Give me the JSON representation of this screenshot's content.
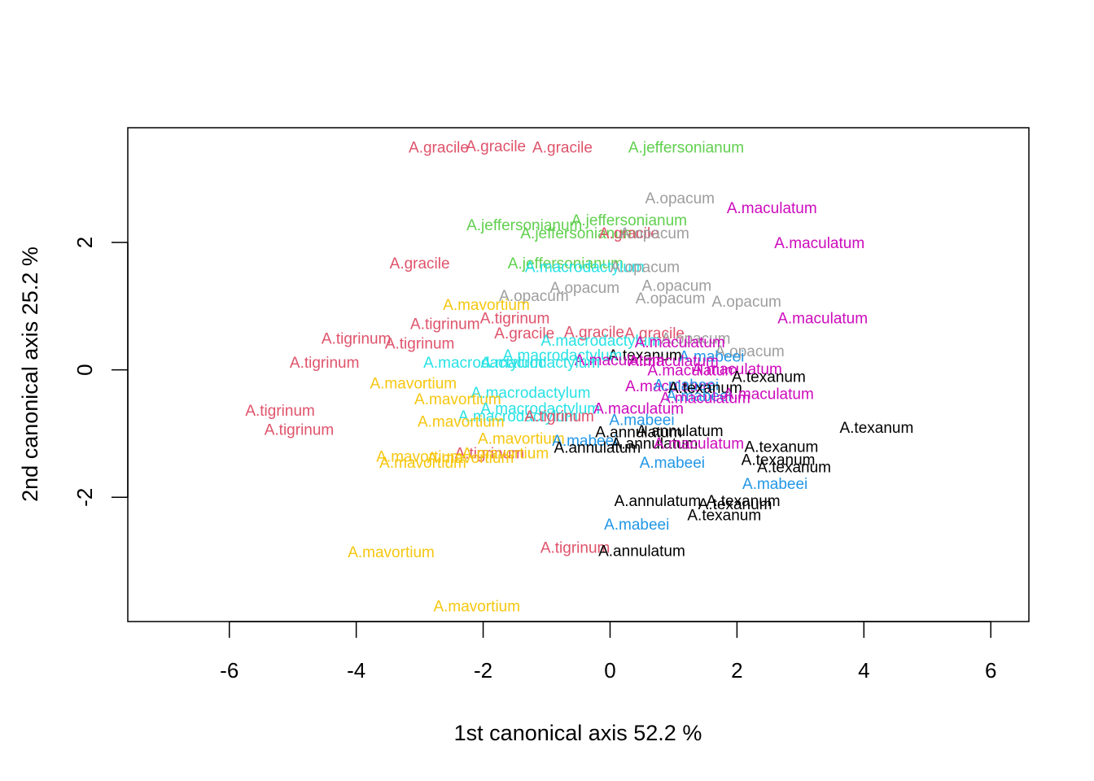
{
  "chart_data": {
    "type": "scatter",
    "title": "",
    "xlabel": "1st canonical axis 52.2 %",
    "ylabel": "2nd canonical axis 25.2 %",
    "xlim": [
      -7.6,
      6.6
    ],
    "ylim": [
      -3.95,
      3.8
    ],
    "x_ticks": [
      -6,
      -4,
      -2,
      0,
      2,
      4,
      6
    ],
    "y_ticks": [
      -2,
      0,
      2
    ],
    "grid": false,
    "colors": {
      "A.gracile": "#DF536B",
      "A.tigrinum": "#DF536B",
      "A.jeffersonianum": "#61D04F",
      "A.opacum": "#9E9E9E",
      "A.maculatum": "#CD0BBC",
      "A.macrodactylum": "#28E2E5",
      "A.mavortium": "#F5C710",
      "A.mabeei": "#2297E6",
      "A.annulatum": "#000000",
      "A.texanum": "#000000"
    },
    "points": [
      {
        "label": "A.gracile",
        "x": -2.7,
        "y": 3.5
      },
      {
        "label": "A.gracile",
        "x": -1.8,
        "y": 3.52
      },
      {
        "label": "A.gracile",
        "x": -0.75,
        "y": 3.5
      },
      {
        "label": "A.jeffersonianum",
        "x": 1.2,
        "y": 3.5
      },
      {
        "label": "A.opacum",
        "x": 1.1,
        "y": 2.7
      },
      {
        "label": "A.maculatum",
        "x": 2.55,
        "y": 2.55
      },
      {
        "label": "A.jeffersonianum",
        "x": -1.35,
        "y": 2.28
      },
      {
        "label": "A.jeffersonianum",
        "x": 0.3,
        "y": 2.36
      },
      {
        "label": "A.jeffersonianum",
        "x": -0.5,
        "y": 2.15
      },
      {
        "label": "A.gracile",
        "x": 0.3,
        "y": 2.15
      },
      {
        "label": "A.opacum",
        "x": 0.7,
        "y": 2.15
      },
      {
        "label": "A.maculatum",
        "x": 3.3,
        "y": 2.0
      },
      {
        "label": "A.gracile",
        "x": -3.0,
        "y": 1.68
      },
      {
        "label": "A.jeffersonianum",
        "x": -0.7,
        "y": 1.68
      },
      {
        "label": "A.macrodactylum",
        "x": -0.4,
        "y": 1.62
      },
      {
        "label": "A.opacum",
        "x": 0.55,
        "y": 1.62
      },
      {
        "label": "A.opacum",
        "x": -0.4,
        "y": 1.3
      },
      {
        "label": "A.opacum",
        "x": 1.05,
        "y": 1.33
      },
      {
        "label": "A.opacum",
        "x": -1.2,
        "y": 1.17
      },
      {
        "label": "A.opacum",
        "x": 0.95,
        "y": 1.13
      },
      {
        "label": "A.opacum",
        "x": 2.15,
        "y": 1.08
      },
      {
        "label": "A.mavortium",
        "x": -1.95,
        "y": 1.03
      },
      {
        "label": "A.tigrinum",
        "x": -1.5,
        "y": 0.82
      },
      {
        "label": "A.tigrinum",
        "x": -2.6,
        "y": 0.73
      },
      {
        "label": "A.maculatum",
        "x": 3.35,
        "y": 0.82
      },
      {
        "label": "A.gracile",
        "x": -1.35,
        "y": 0.58
      },
      {
        "label": "A.gracile",
        "x": -0.25,
        "y": 0.6
      },
      {
        "label": "A.gracile",
        "x": 0.7,
        "y": 0.58
      },
      {
        "label": "A.tigrinum",
        "x": -4.0,
        "y": 0.5
      },
      {
        "label": "A.tigrinum",
        "x": -3.0,
        "y": 0.42
      },
      {
        "label": "A.macrodactylum",
        "x": -0.15,
        "y": 0.47
      },
      {
        "label": "A.opacum",
        "x": 1.35,
        "y": 0.5
      },
      {
        "label": "A.maculatum",
        "x": 1.1,
        "y": 0.44
      },
      {
        "label": "A.opacum",
        "x": 2.2,
        "y": 0.3
      },
      {
        "label": "A.texanum",
        "x": 0.55,
        "y": 0.24
      },
      {
        "label": "A.macrodactylum",
        "x": -0.75,
        "y": 0.24
      },
      {
        "label": "A.mabeei",
        "x": 1.6,
        "y": 0.22
      },
      {
        "label": "A.maculatum",
        "x": 0.15,
        "y": 0.16
      },
      {
        "label": "A.maculatum",
        "x": 1.0,
        "y": 0.15
      },
      {
        "label": "A.tigrinum",
        "x": -4.5,
        "y": 0.12
      },
      {
        "label": "A.macrodactylum",
        "x": -2.0,
        "y": 0.12
      },
      {
        "label": "A.macrodactylum",
        "x": -1.1,
        "y": 0.12
      },
      {
        "label": "A.maculatum",
        "x": 2.0,
        "y": 0.02
      },
      {
        "label": "A.maculatum",
        "x": 1.3,
        "y": 0.0
      },
      {
        "label": "A.texanum",
        "x": 2.5,
        "y": -0.1
      },
      {
        "label": "A.mavortium",
        "x": -3.1,
        "y": -0.2
      },
      {
        "label": "A.maculatum",
        "x": 0.95,
        "y": -0.25
      },
      {
        "label": "A.mabeei",
        "x": 1.2,
        "y": -0.23
      },
      {
        "label": "A.texanum",
        "x": 1.5,
        "y": -0.27
      },
      {
        "label": "A.macrodactylum",
        "x": -1.25,
        "y": -0.35
      },
      {
        "label": "A.mabeei",
        "x": 1.4,
        "y": -0.4
      },
      {
        "label": "A.maculatum",
        "x": 1.5,
        "y": -0.43
      },
      {
        "label": "A.maculatum",
        "x": 2.5,
        "y": -0.37
      },
      {
        "label": "A.mavortium",
        "x": -2.4,
        "y": -0.45
      },
      {
        "label": "A.macrodactylum",
        "x": -1.1,
        "y": -0.6
      },
      {
        "label": "A.maculatum",
        "x": 0.45,
        "y": -0.6
      },
      {
        "label": "A.tigrinum",
        "x": -5.2,
        "y": -0.63
      },
      {
        "label": "A.macrodactylum",
        "x": -1.45,
        "y": -0.72
      },
      {
        "label": "A.tigrinum",
        "x": -0.8,
        "y": -0.72
      },
      {
        "label": "A.mabeei",
        "x": 0.5,
        "y": -0.78
      },
      {
        "label": "A.mavortium",
        "x": -2.35,
        "y": -0.8
      },
      {
        "label": "A.tigrinum",
        "x": -4.9,
        "y": -0.93
      },
      {
        "label": "A.texanum",
        "x": 4.2,
        "y": -0.9
      },
      {
        "label": "A.annulatum",
        "x": 0.45,
        "y": -0.97
      },
      {
        "label": "A.annulatum",
        "x": 1.1,
        "y": -0.95
      },
      {
        "label": "A.mavortium",
        "x": -1.4,
        "y": -1.07
      },
      {
        "label": "A.mabeei",
        "x": -0.4,
        "y": -1.1
      },
      {
        "label": "A.annulatum",
        "x": 0.7,
        "y": -1.15
      },
      {
        "label": "A.maculatum",
        "x": 1.4,
        "y": -1.15
      },
      {
        "label": "A.texanum",
        "x": 2.7,
        "y": -1.2
      },
      {
        "label": "A.annulatum",
        "x": -0.2,
        "y": -1.21
      },
      {
        "label": "A.tigrinum",
        "x": -1.9,
        "y": -1.3
      },
      {
        "label": "A.mavortium",
        "x": -1.65,
        "y": -1.3
      },
      {
        "label": "A.mavortium",
        "x": -3.0,
        "y": -1.35
      },
      {
        "label": "A.mavortium",
        "x": -2.2,
        "y": -1.37
      },
      {
        "label": "A.mavortium",
        "x": -2.95,
        "y": -1.45
      },
      {
        "label": "A.mabeei",
        "x": 0.98,
        "y": -1.45
      },
      {
        "label": "A.texanum",
        "x": 2.65,
        "y": -1.4
      },
      {
        "label": "A.texanum",
        "x": 2.9,
        "y": -1.52
      },
      {
        "label": "A.mabeei",
        "x": 2.6,
        "y": -1.78
      },
      {
        "label": "A.annulatum",
        "x": 0.75,
        "y": -2.05
      },
      {
        "label": "A.texanum",
        "x": 2.1,
        "y": -2.05
      },
      {
        "label": "A.texanum",
        "x": 1.97,
        "y": -2.1
      },
      {
        "label": "A.texanum",
        "x": 1.8,
        "y": -2.27
      },
      {
        "label": "A.mabeei",
        "x": 0.42,
        "y": -2.42
      },
      {
        "label": "A.tigrinum",
        "x": -0.55,
        "y": -2.78
      },
      {
        "label": "A.annulatum",
        "x": 0.5,
        "y": -2.83
      },
      {
        "label": "A.mavortium",
        "x": -3.45,
        "y": -2.85
      },
      {
        "label": "A.mavortium",
        "x": -2.1,
        "y": -3.7
      }
    ]
  }
}
